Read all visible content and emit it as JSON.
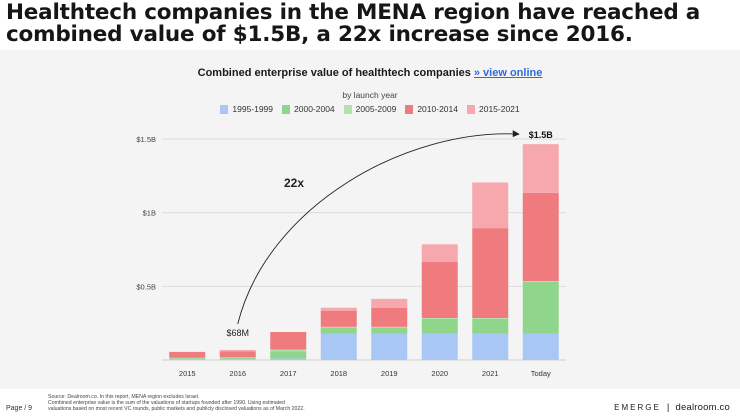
{
  "headline": "Healthtech companies in the MENA region have reached a combined value of $1.5B, a 22x increase since 2016.",
  "chart_title": "Combined enterprise value of healthtech companies",
  "view_online": "» view online",
  "subtitle": "by launch year",
  "footer": {
    "source_lines": [
      "Source: Dealroom.co. In this report, MENA region excludes Israel.",
      "Combined enterprise value is the sum of the valuations of startups founded after 1990. Using estimated",
      "valuations based on most recent VC rounds, public markets and publicly disclosed valuations as of March 2022."
    ],
    "page": "Page / 9",
    "brand_left": "EMERGE",
    "brand_sep": "|",
    "brand_right": "dealroom.co"
  },
  "chart_data": {
    "type": "bar",
    "stacked": true,
    "categories": [
      "2015",
      "2016",
      "2017",
      "2018",
      "2019",
      "2020",
      "2021",
      "Today"
    ],
    "series": [
      {
        "name": "1995-1999",
        "color": "#a9c7f5",
        "values": [
          0.005,
          0.005,
          0.01,
          0.18,
          0.18,
          0.18,
          0.18,
          0.18
        ]
      },
      {
        "name": "2000-2004",
        "color": "#8fd68c",
        "values": [
          0.005,
          0.008,
          0.05,
          0.04,
          0.04,
          0.1,
          0.1,
          0.35
        ]
      },
      {
        "name": "2005-2009",
        "color": "#b6dfb0",
        "values": [
          0.005,
          0.005,
          0.01,
          0.005,
          0.005,
          0.005,
          0.005,
          0.005
        ]
      },
      {
        "name": "2010-2014",
        "color": "#f07b7f",
        "values": [
          0.04,
          0.04,
          0.12,
          0.11,
          0.13,
          0.38,
          0.61,
          0.6
        ]
      },
      {
        "name": "2015-2021",
        "color": "#f7a8ac",
        "values": [
          0.0,
          0.01,
          0.0,
          0.02,
          0.06,
          0.12,
          0.31,
          0.33
        ]
      }
    ],
    "y_ticks": [
      {
        "label": "$1.5B",
        "value": 1.5
      },
      {
        "label": "$1B",
        "value": 1.0
      },
      {
        "label": "$0.5B",
        "value": 0.5
      }
    ],
    "ylim": [
      0,
      1.5
    ],
    "annotations": {
      "start_label": "$68M",
      "end_label": "$1.5B",
      "growth_label": "22x"
    },
    "grid": true
  }
}
